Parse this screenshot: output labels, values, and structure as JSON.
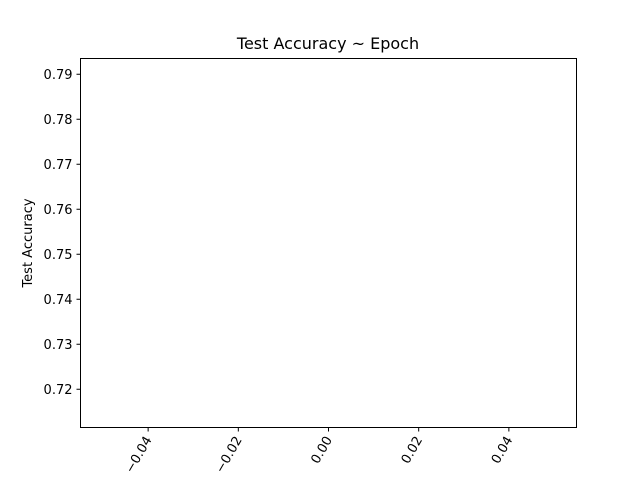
{
  "chart_data": {
    "type": "scatter",
    "title": "Test Accuracy ~ Epoch",
    "xlabel": "",
    "ylabel": "Test Accuracy",
    "xlim": [
      -0.055,
      0.055
    ],
    "ylim": [
      0.7115,
      0.7935
    ],
    "x_ticks": [
      -0.04,
      -0.02,
      0.0,
      0.02,
      0.04
    ],
    "x_tick_labels": [
      "−0.04",
      "−0.02",
      "0.00",
      "0.02",
      "0.04"
    ],
    "y_ticks": [
      0.72,
      0.73,
      0.74,
      0.75,
      0.76,
      0.77,
      0.78,
      0.79
    ],
    "y_tick_labels": [
      "0.72",
      "0.73",
      "0.74",
      "0.75",
      "0.76",
      "0.77",
      "0.78",
      "0.79"
    ],
    "series": [],
    "grid": false
  }
}
